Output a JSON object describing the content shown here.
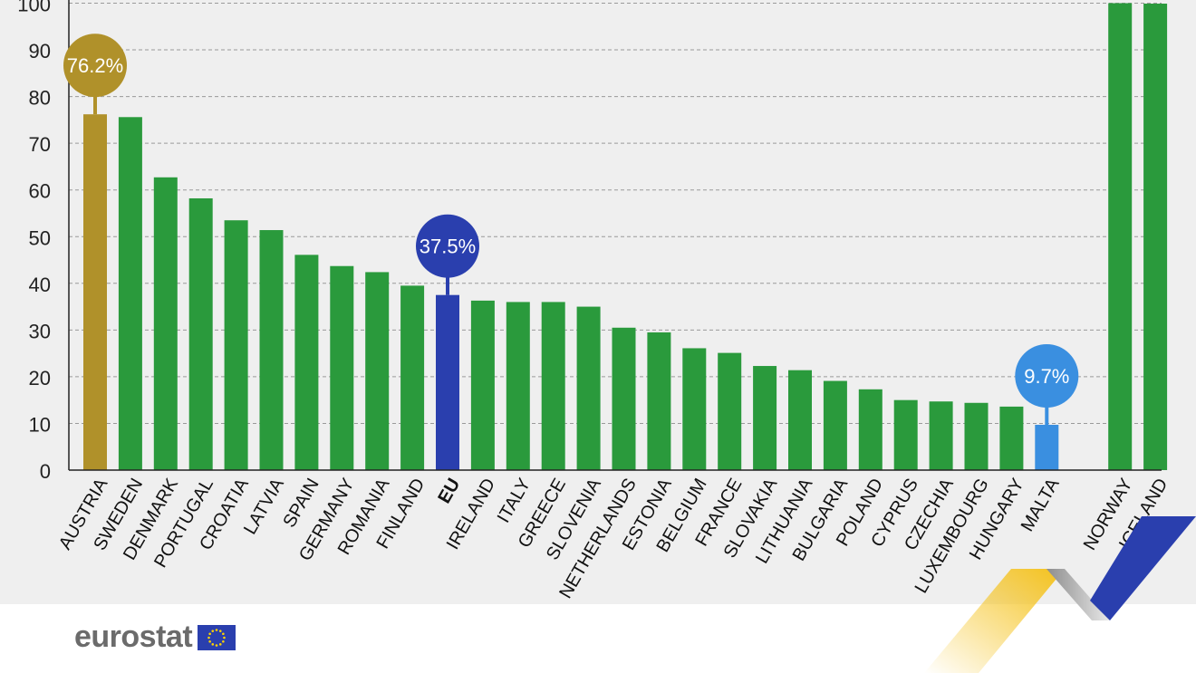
{
  "brand": {
    "logo_text": "eurostat",
    "colors": {
      "green": "#2a9a3c",
      "gold": "#b0912a",
      "eu_blue": "#2a3fae",
      "light_blue": "#3a8fe0"
    }
  },
  "chart_data": {
    "type": "bar",
    "yaxis": {
      "ticks": [
        "0",
        "10",
        "20",
        "30",
        "40",
        "50",
        "60",
        "70",
        "80",
        "90",
        "100"
      ],
      "ylim": [
        0,
        100
      ],
      "grid": true
    },
    "categories": [
      "AUSTRIA",
      "SWEDEN",
      "DENMARK",
      "PORTUGAL",
      "CROATIA",
      "LATVIA",
      "SPAIN",
      "GERMANY",
      "ROMANIA",
      "FINLAND",
      "EU",
      "IRELAND",
      "ITALY",
      "GREECE",
      "SLOVENIA",
      "NETHERLANDS",
      "ESTONIA",
      "BELGIUM",
      "FRANCE",
      "SLOVAKIA",
      "LITHUANIA",
      "BULGARIA",
      "POLAND",
      "CYPRUS",
      "CZECHIA",
      "LUXEMBOURG",
      "HUNGARY",
      "MALTA",
      "NORWAY",
      "ICELAND"
    ],
    "values": [
      76.2,
      75.6,
      62.7,
      58.2,
      53.5,
      51.4,
      46.1,
      43.7,
      42.4,
      39.5,
      37.5,
      36.3,
      36.0,
      36.0,
      35.0,
      30.5,
      29.5,
      26.1,
      25.1,
      22.3,
      21.4,
      19.1,
      17.3,
      15.0,
      14.7,
      14.4,
      13.6,
      9.7,
      100.0,
      99.9
    ],
    "highlights": [
      {
        "category": "AUSTRIA",
        "label": "76.2%",
        "color": "#b0912a"
      },
      {
        "category": "EU",
        "label": "37.5%",
        "color": "#2a3fae"
      },
      {
        "category": "MALTA",
        "label": "9.7%",
        "color": "#3a8fe0"
      }
    ],
    "bold_categories": [
      "EU"
    ],
    "default_color": "#2a9a3c"
  }
}
